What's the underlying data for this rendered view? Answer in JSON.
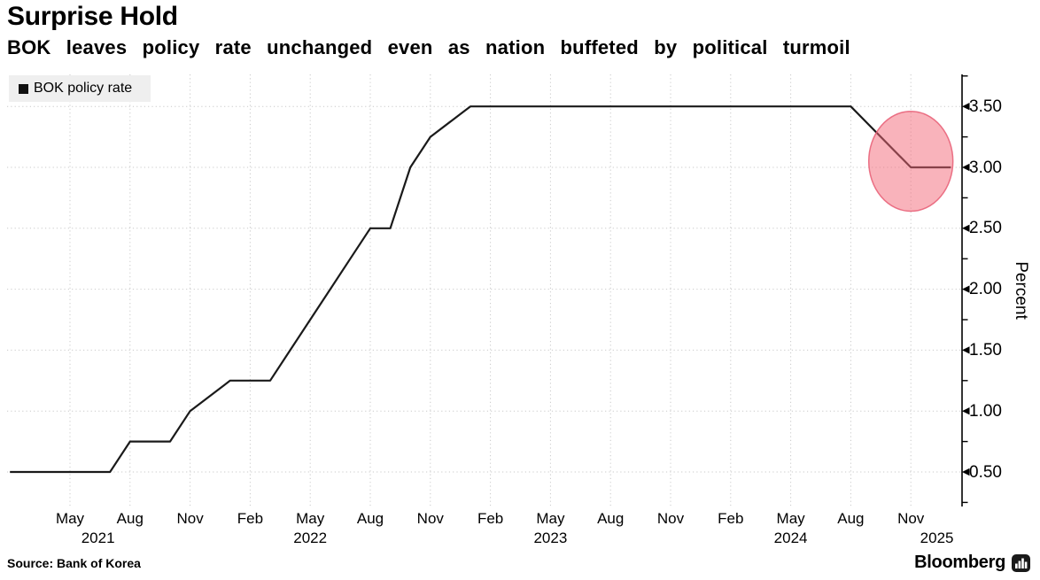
{
  "header": {
    "title": "Surprise Hold",
    "subtitle": "BOK leaves policy rate unchanged even as nation buffeted by political turmoil"
  },
  "legend": {
    "label": "BOK policy rate",
    "marker_color": "#111111",
    "bg_color": "#efefef"
  },
  "chart_data": {
    "type": "line",
    "title": "Surprise Hold",
    "subtitle": "BOK leaves policy rate unchanged even as nation buffeted by political turmoil",
    "ylabel": "Percent",
    "unit": "percent",
    "ylim": [
      0.25,
      3.75
    ],
    "ytick_labels": [
      "0.50",
      "1.00",
      "1.50",
      "2.00",
      "2.50",
      "3.00",
      "3.50"
    ],
    "ytick_minor_interval": 0.25,
    "grid_style": "dotted",
    "grid_color": "#c9c9c9",
    "axis_color": "#000000",
    "x_range": [
      "2021-02",
      "2025-02"
    ],
    "xticks": [
      {
        "date": "2021-05",
        "label": "May"
      },
      {
        "date": "2021-08",
        "label": "Aug"
      },
      {
        "date": "2021-11",
        "label": "Nov"
      },
      {
        "date": "2022-02",
        "label": "Feb"
      },
      {
        "date": "2022-05",
        "label": "May"
      },
      {
        "date": "2022-08",
        "label": "Aug"
      },
      {
        "date": "2022-11",
        "label": "Nov"
      },
      {
        "date": "2023-02",
        "label": "Feb"
      },
      {
        "date": "2023-05",
        "label": "May"
      },
      {
        "date": "2023-08",
        "label": "Aug"
      },
      {
        "date": "2023-11",
        "label": "Nov"
      },
      {
        "date": "2024-02",
        "label": "Feb"
      },
      {
        "date": "2024-05",
        "label": "May"
      },
      {
        "date": "2024-08",
        "label": "Aug"
      },
      {
        "date": "2024-11",
        "label": "Nov"
      }
    ],
    "year_labels": [
      {
        "label": "2021",
        "t": 5.4
      },
      {
        "label": "2022",
        "t": 16
      },
      {
        "label": "2023",
        "t": 28
      },
      {
        "label": "2024",
        "t": 40
      },
      {
        "label": "2025",
        "t": 47.3
      }
    ],
    "series": [
      {
        "name": "BOK policy rate",
        "color": "#1a1a1a",
        "points": [
          {
            "date": "2021-02",
            "value": 0.5
          },
          {
            "date": "2021-07",
            "value": 0.5
          },
          {
            "date": "2021-08",
            "value": 0.75
          },
          {
            "date": "2021-10",
            "value": 0.75
          },
          {
            "date": "2021-11",
            "value": 1.0
          },
          {
            "date": "2022-01",
            "value": 1.25
          },
          {
            "date": "2022-03",
            "value": 1.25
          },
          {
            "date": "2022-04",
            "value": 1.5
          },
          {
            "date": "2022-05",
            "value": 1.75
          },
          {
            "date": "2022-07",
            "value": 2.25
          },
          {
            "date": "2022-08",
            "value": 2.5
          },
          {
            "date": "2022-09",
            "value": 2.5
          },
          {
            "date": "2022-10",
            "value": 3.0
          },
          {
            "date": "2022-11",
            "value": 3.25
          },
          {
            "date": "2023-01",
            "value": 3.5
          },
          {
            "date": "2024-08",
            "value": 3.5
          },
          {
            "date": "2024-11",
            "value": 3.0
          },
          {
            "date": "2025-01",
            "value": 3.0
          }
        ]
      }
    ],
    "annotation": {
      "shape": "ellipse",
      "date": "2024-11",
      "value": 3.05,
      "rx_months": 2.1,
      "ry_rate": 0.41,
      "fill_color": "#f46778",
      "fill_opacity": 0.5,
      "stroke_color": "#e85d74",
      "stroke_opacity": 0.85
    }
  },
  "footer": {
    "source": "Source: Bank of Korea",
    "brand": "Bloomberg"
  }
}
